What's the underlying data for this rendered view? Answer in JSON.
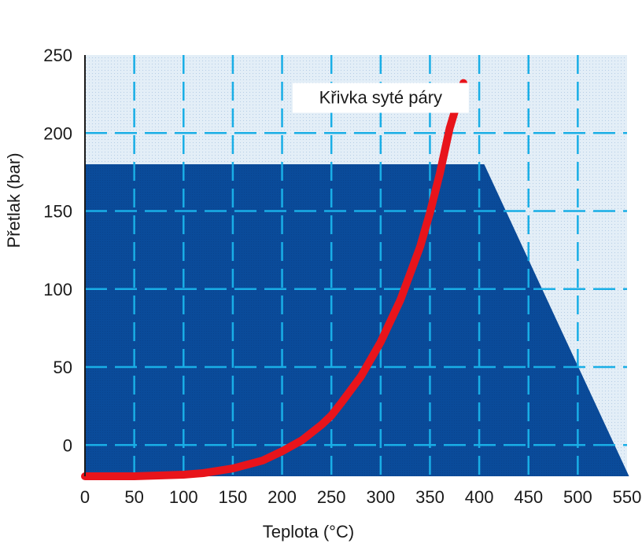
{
  "chart_data": {
    "type": "area",
    "xlabel": "Teplota (°C)",
    "ylabel": "Přetlak (bar)",
    "xlim": [
      0,
      550
    ],
    "ylim": [
      -20,
      250
    ],
    "x_ticks": [
      "0",
      "50",
      "100",
      "150",
      "200",
      "250",
      "300",
      "350",
      "400",
      "450",
      "500",
      "550"
    ],
    "y_ticks": [
      "250",
      "200",
      "150",
      "100",
      "50",
      "0"
    ],
    "grid": true,
    "colors": {
      "operating_region": "#0a4a98",
      "background_region": "#dce9f5",
      "grid": "#19aee6",
      "saturation_curve": "#e8141b"
    },
    "series": [
      {
        "kind": "area",
        "x": [
          0,
          405,
          552,
          0
        ],
        "y": [
          180,
          180,
          -20,
          -20
        ]
      },
      {
        "kind": "line",
        "x": [
          0,
          50,
          100,
          120,
          150,
          180,
          200,
          220,
          240,
          250,
          260,
          280,
          300,
          320,
          340,
          350,
          360,
          370,
          380,
          384
        ],
        "y": [
          -20,
          -20,
          -19,
          -18,
          -15,
          -10,
          -4,
          3,
          13,
          19,
          27,
          44,
          66,
          93,
          127,
          149,
          174,
          203,
          224,
          232
        ]
      }
    ],
    "annotations": [
      {
        "text": "Křivka syté páry",
        "x": 300,
        "y": 219
      }
    ]
  }
}
